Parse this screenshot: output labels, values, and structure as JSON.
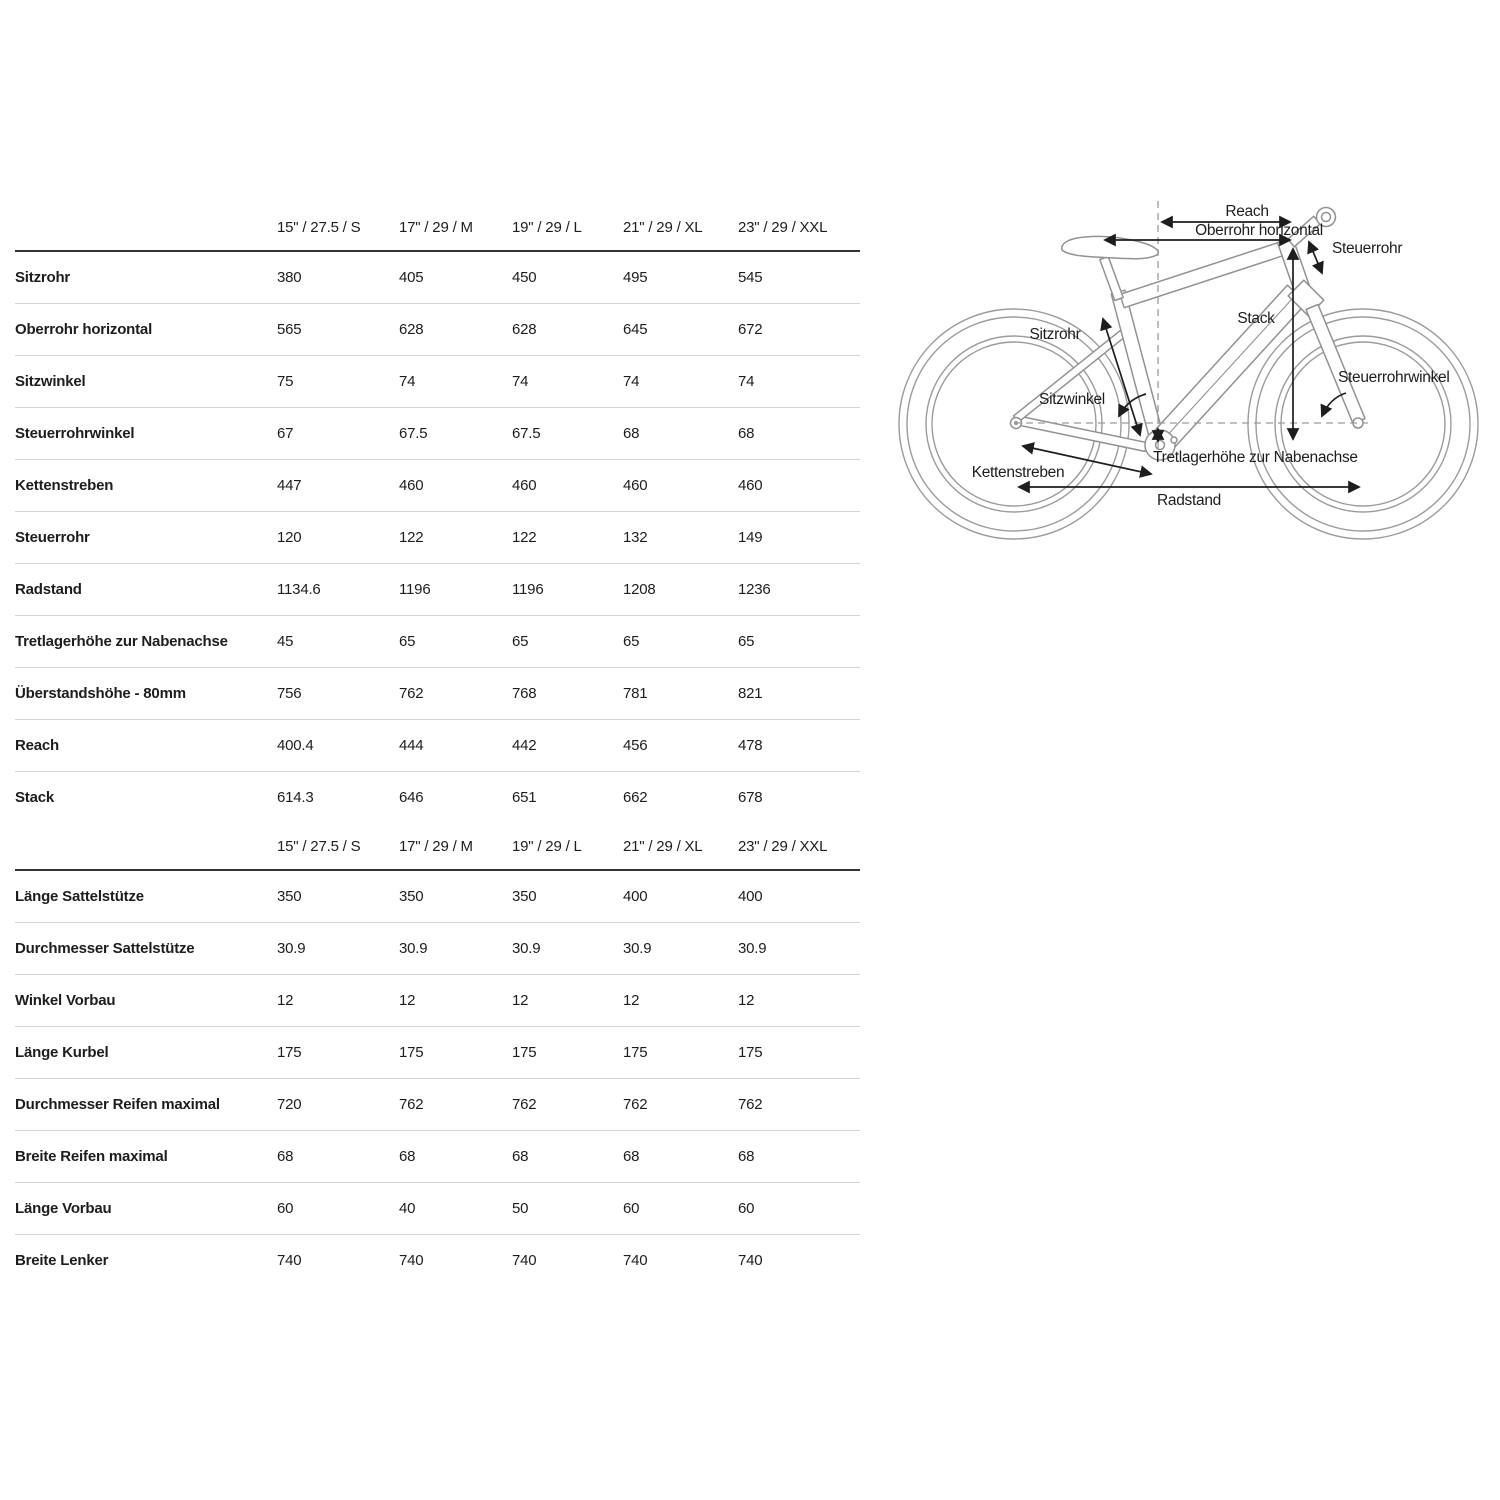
{
  "table": {
    "size_headers": [
      "15\" / 27.5 / S",
      "17\" / 29 / M",
      "19\" / 29 / L",
      "21\" / 29 / XL",
      "23\" / 29 / XXL"
    ],
    "sections": [
      {
        "rows": [
          {
            "label": "Sitzrohr",
            "values": [
              "380",
              "405",
              "450",
              "495",
              "545"
            ]
          },
          {
            "label": "Oberrohr horizontal",
            "values": [
              "565",
              "628",
              "628",
              "645",
              "672"
            ]
          },
          {
            "label": "Sitzwinkel",
            "values": [
              "75",
              "74",
              "74",
              "74",
              "74"
            ]
          },
          {
            "label": "Steuerrohrwinkel",
            "values": [
              "67",
              "67.5",
              "67.5",
              "68",
              "68"
            ]
          },
          {
            "label": "Kettenstreben",
            "values": [
              "447",
              "460",
              "460",
              "460",
              "460"
            ]
          },
          {
            "label": "Steuerrohr",
            "values": [
              "120",
              "122",
              "122",
              "132",
              "149"
            ]
          },
          {
            "label": "Radstand",
            "values": [
              "1134.6",
              "1196",
              "1196",
              "1208",
              "1236"
            ]
          },
          {
            "label": "Tretlagerhöhe zur Nabenachse",
            "values": [
              "45",
              "65",
              "65",
              "65",
              "65"
            ]
          },
          {
            "label": "Überstandshöhe - 80mm",
            "values": [
              "756",
              "762",
              "768",
              "781",
              "821"
            ]
          },
          {
            "label": "Reach",
            "values": [
              "400.4",
              "444",
              "442",
              "456",
              "478"
            ]
          },
          {
            "label": "Stack",
            "values": [
              "614.3",
              "646",
              "651",
              "662",
              "678"
            ]
          }
        ]
      },
      {
        "rows": [
          {
            "label": "Länge Sattelstütze",
            "values": [
              "350",
              "350",
              "350",
              "400",
              "400"
            ]
          },
          {
            "label": "Durchmesser Sattelstütze",
            "values": [
              "30.9",
              "30.9",
              "30.9",
              "30.9",
              "30.9"
            ]
          },
          {
            "label": "Winkel Vorbau",
            "values": [
              "12",
              "12",
              "12",
              "12",
              "12"
            ]
          },
          {
            "label": "Länge Kurbel",
            "values": [
              "175",
              "175",
              "175",
              "175",
              "175"
            ]
          },
          {
            "label": "Durchmesser Reifen maximal",
            "values": [
              "720",
              "762",
              "762",
              "762",
              "762"
            ]
          },
          {
            "label": "Breite Reifen maximal",
            "values": [
              "68",
              "68",
              "68",
              "68",
              "68"
            ]
          },
          {
            "label": "Länge Vorbau",
            "values": [
              "60",
              "40",
              "50",
              "60",
              "60"
            ]
          },
          {
            "label": "Breite Lenker",
            "values": [
              "740",
              "740",
              "740",
              "740",
              "740"
            ]
          }
        ]
      }
    ]
  },
  "diagram": {
    "labels": {
      "reach": "Reach",
      "oberrohr": "Oberrohr horizontal",
      "steuerrohr": "Steuerrohr",
      "stack": "Stack",
      "sitzrohr": "Sitzrohr",
      "sitzwinkel": "Sitzwinkel",
      "steuerrohrwinkel": "Steuerrohrwinkel",
      "kettenstreben": "Kettenstreben",
      "tretlagerhoehe": "Tretlagerhöhe zur Nabenachse",
      "radstand": "Radstand"
    }
  },
  "colors": {
    "text": "#1d1d1b",
    "thin_divider": "#d4d4d4",
    "thick_divider": "#343434",
    "frame_line": "#929292",
    "dashed_line": "#9c9c9c"
  }
}
